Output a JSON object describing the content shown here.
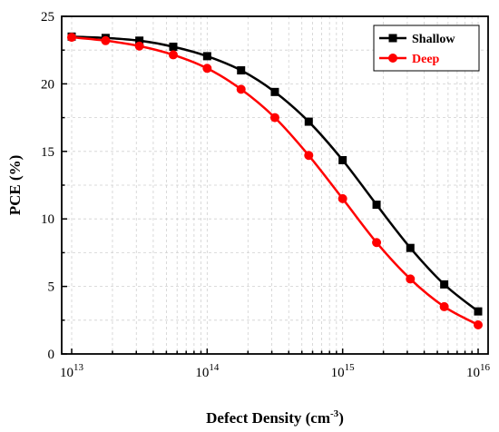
{
  "chart_data": {
    "type": "line",
    "xlabel": "Defect Density (cm",
    "xlabel_sup": "-3",
    "xlabel_close": ")",
    "ylabel": "PCE (%)",
    "xscale": "log",
    "xlim": [
      10000000000000.0,
      1e+16
    ],
    "ylim": [
      0,
      25
    ],
    "x_ticks": [
      {
        "base": "10",
        "exp": "13",
        "value": 10000000000000.0
      },
      {
        "base": "10",
        "exp": "14",
        "value": 100000000000000.0
      },
      {
        "base": "10",
        "exp": "15",
        "value": 1000000000000000.0
      },
      {
        "base": "10",
        "exp": "16",
        "value": 1e+16
      }
    ],
    "y_ticks": [
      "0",
      "5",
      "10",
      "15",
      "20",
      "25"
    ],
    "grid": true,
    "legend_position": "top-right",
    "x": [
      10000000000000.0,
      17800000000000.0,
      31600000000000.0,
      56200000000000.0,
      100000000000000.0,
      178000000000000.0,
      316000000000000.0,
      562000000000000.0,
      1000000000000000.0,
      1780000000000000.0,
      3160000000000000.0,
      5620000000000000.0,
      1e+16
    ],
    "series": [
      {
        "name": "Shallow",
        "color": "#000000",
        "marker": "square",
        "values": [
          23.5,
          23.4,
          23.2,
          22.75,
          22.05,
          21.0,
          19.4,
          17.2,
          14.35,
          11.05,
          7.85,
          5.15,
          3.15
        ]
      },
      {
        "name": "Deep",
        "color": "#ff0000",
        "marker": "circle",
        "values": [
          23.45,
          23.2,
          22.8,
          22.15,
          21.15,
          19.6,
          17.5,
          14.7,
          11.5,
          8.25,
          5.55,
          3.5,
          2.15
        ]
      }
    ]
  }
}
